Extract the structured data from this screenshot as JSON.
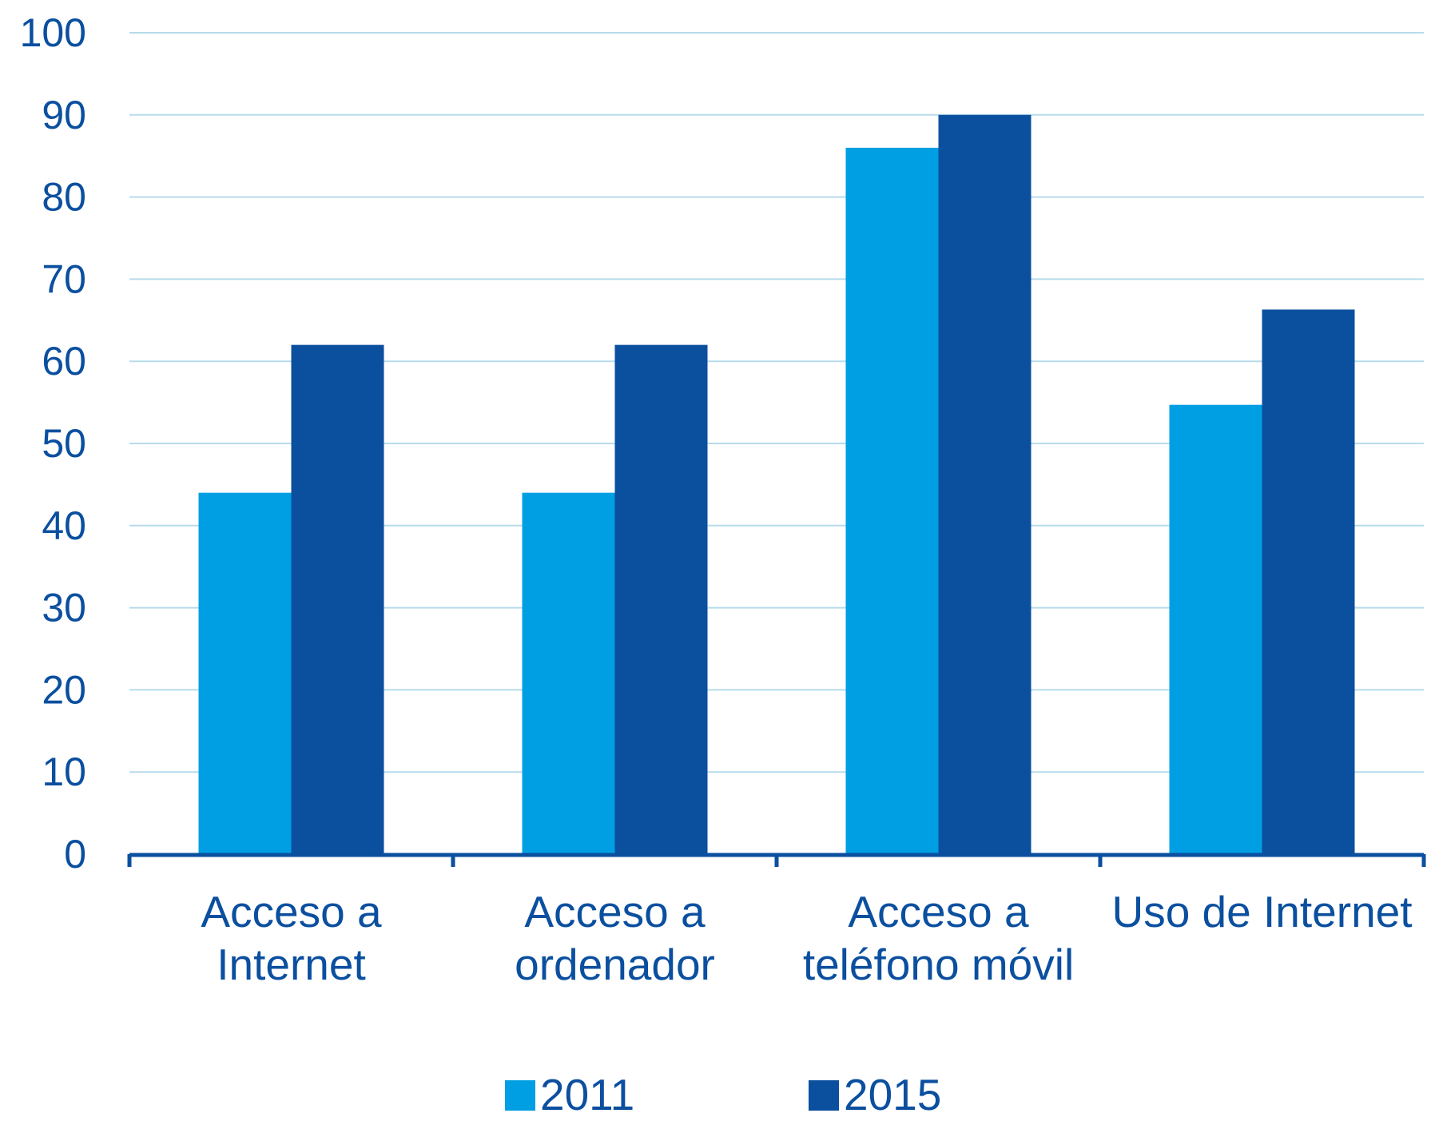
{
  "chart_data": {
    "type": "bar",
    "title": "",
    "xlabel": "",
    "ylabel": "",
    "ylim": [
      0,
      100
    ],
    "yticks": [
      0,
      10,
      20,
      30,
      40,
      50,
      60,
      70,
      80,
      90,
      100
    ],
    "grid": true,
    "legend_position": "bottom",
    "categories": [
      [
        "Acceso a",
        "Internet"
      ],
      [
        "Acceso a",
        "ordenador"
      ],
      [
        "Acceso a",
        "teléfono móvil"
      ],
      [
        "Uso de Internet"
      ]
    ],
    "series": [
      {
        "name": "2011",
        "color": "#009fe3",
        "values": [
          44,
          44,
          86,
          54.7
        ]
      },
      {
        "name": "2015",
        "color": "#0b4f9f",
        "values": [
          62,
          62,
          90,
          66.3
        ]
      }
    ],
    "colors": {
      "text": "#0b4f9f",
      "grid": "#b7dceb",
      "axis": "#0b4f9f"
    }
  }
}
